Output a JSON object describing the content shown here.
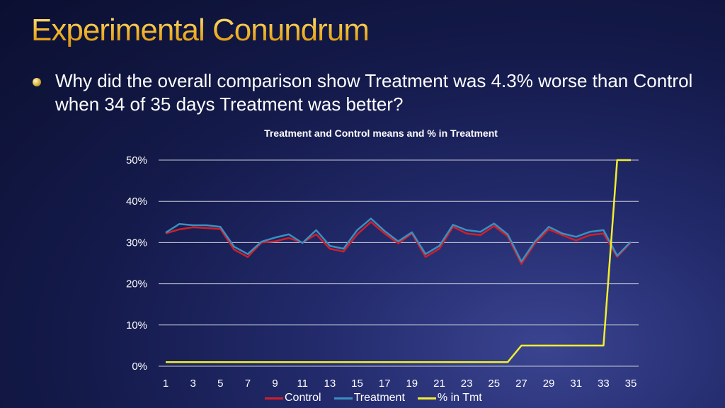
{
  "slide": {
    "title": "Experimental Conundrum",
    "bullet": "Why did the overall comparison show Treatment was 4.3% worse than  Control when 34 of 35 days Treatment was better?"
  },
  "chart_data": {
    "type": "line",
    "title": "Treatment and Control means and % in Treatment",
    "xlabel": "",
    "ylabel": "",
    "x": [
      1,
      2,
      3,
      4,
      5,
      6,
      7,
      8,
      9,
      10,
      11,
      12,
      13,
      14,
      15,
      16,
      17,
      18,
      19,
      20,
      21,
      22,
      23,
      24,
      25,
      26,
      27,
      28,
      29,
      30,
      31,
      32,
      33,
      34,
      35
    ],
    "x_tick_labels": [
      "1",
      "3",
      "5",
      "7",
      "9",
      "11",
      "13",
      "15",
      "17",
      "19",
      "21",
      "23",
      "25",
      "27",
      "29",
      "31",
      "33",
      "35"
    ],
    "ylim": [
      0,
      0.5
    ],
    "y_ticks": [
      0,
      0.1,
      0.2,
      0.3,
      0.4,
      0.5
    ],
    "y_tick_labels": [
      "0%",
      "10%",
      "20%",
      "30%",
      "40%",
      "50%"
    ],
    "grid": true,
    "legend_position": "bottom",
    "series": [
      {
        "name": "Control",
        "color": "#d11f2a",
        "values": [
          0.322,
          0.332,
          0.337,
          0.335,
          0.333,
          0.283,
          0.265,
          0.3,
          0.303,
          0.311,
          0.3,
          0.32,
          0.285,
          0.278,
          0.32,
          0.35,
          0.322,
          0.298,
          0.322,
          0.265,
          0.285,
          0.338,
          0.322,
          0.318,
          0.34,
          0.315,
          0.248,
          0.298,
          0.332,
          0.318,
          0.305,
          0.318,
          0.322,
          0.265,
          0.3
        ]
      },
      {
        "name": "Treatment",
        "color": "#3b8fc0",
        "values": [
          0.324,
          0.345,
          0.342,
          0.342,
          0.338,
          0.29,
          0.272,
          0.302,
          0.312,
          0.32,
          0.299,
          0.33,
          0.292,
          0.285,
          0.33,
          0.358,
          0.328,
          0.303,
          0.325,
          0.272,
          0.292,
          0.343,
          0.33,
          0.326,
          0.346,
          0.32,
          0.254,
          0.303,
          0.338,
          0.322,
          0.314,
          0.326,
          0.33,
          0.268,
          0.302
        ]
      },
      {
        "name": "% in Tmt",
        "color": "#f2ee2e",
        "values": [
          0.01,
          0.01,
          0.01,
          0.01,
          0.01,
          0.01,
          0.01,
          0.01,
          0.01,
          0.01,
          0.01,
          0.01,
          0.01,
          0.01,
          0.01,
          0.01,
          0.01,
          0.01,
          0.01,
          0.01,
          0.01,
          0.01,
          0.01,
          0.01,
          0.01,
          0.01,
          0.05,
          0.05,
          0.05,
          0.05,
          0.05,
          0.05,
          0.05,
          0.5,
          0.5
        ]
      }
    ]
  }
}
